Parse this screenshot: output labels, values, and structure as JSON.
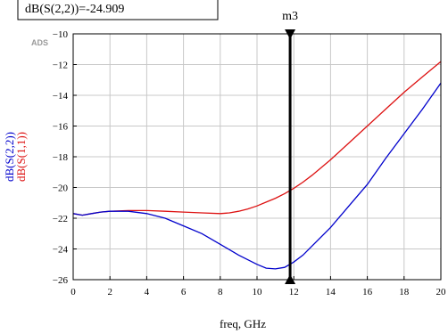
{
  "chart_data": {
    "type": "line",
    "watermark": "ADS",
    "xlabel": "freq, GHz",
    "ylabels": [
      {
        "text": "dB(S(2,2))",
        "color": "#0000cc"
      },
      {
        "text": "dB(S(1,1))",
        "color": "#dd1111"
      }
    ],
    "xlim": [
      0,
      20
    ],
    "ylim": [
      -26,
      -10
    ],
    "xticks": [
      0,
      2,
      4,
      6,
      8,
      10,
      12,
      14,
      16,
      18,
      20
    ],
    "yticks": [
      -10,
      -12,
      -14,
      -16,
      -18,
      -20,
      -22,
      -24,
      -26
    ],
    "grid": true,
    "series": [
      {
        "name": "dB(S(1,1))",
        "color": "#dd1111",
        "x": [
          0,
          0.5,
          1,
          1.5,
          2,
          3,
          4,
          5,
          6,
          7,
          8,
          8.5,
          9,
          9.5,
          10,
          10.5,
          11,
          11.5,
          12,
          12.5,
          13,
          14,
          15,
          16,
          17,
          18,
          19,
          20
        ],
        "y": [
          -21.7,
          -21.8,
          -21.7,
          -21.6,
          -21.55,
          -21.5,
          -21.5,
          -21.55,
          -21.6,
          -21.65,
          -21.7,
          -21.65,
          -21.55,
          -21.4,
          -21.2,
          -20.95,
          -20.7,
          -20.4,
          -20.05,
          -19.65,
          -19.2,
          -18.2,
          -17.1,
          -16.0,
          -14.9,
          -13.8,
          -12.8,
          -11.8
        ]
      },
      {
        "name": "dB(S(2,2))",
        "color": "#0000cc",
        "x": [
          0,
          0.5,
          1,
          1.5,
          2,
          3,
          4,
          5,
          6,
          7,
          8,
          9,
          10,
          10.5,
          11,
          11.5,
          12,
          12.5,
          13,
          14,
          15,
          16,
          17,
          18,
          19,
          20
        ],
        "y": [
          -21.7,
          -21.8,
          -21.7,
          -21.6,
          -21.55,
          -21.55,
          -21.7,
          -22.0,
          -22.5,
          -23.0,
          -23.7,
          -24.4,
          -25.0,
          -25.25,
          -25.3,
          -25.2,
          -24.85,
          -24.4,
          -23.8,
          -22.6,
          -21.2,
          -19.8,
          -18.1,
          -16.5,
          -14.9,
          -13.2
        ]
      }
    ],
    "marker": {
      "name": "m3",
      "x": 11.8
    },
    "readout": {
      "text": "dB(S(2,2))=-24.909"
    }
  }
}
